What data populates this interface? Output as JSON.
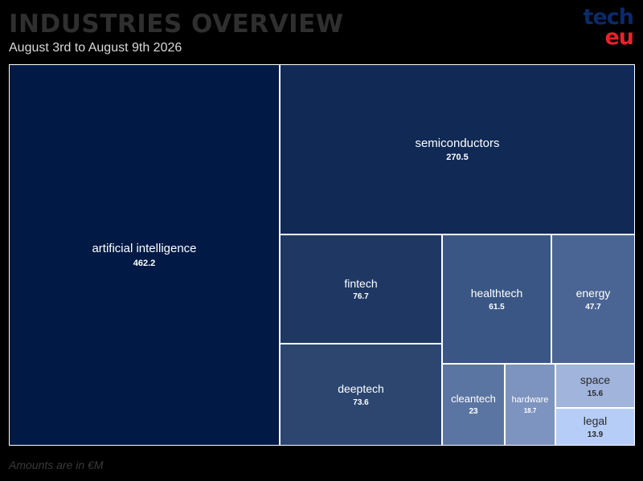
{
  "header": {
    "title": "INDUSTRIES OVERVIEW",
    "subtitle": "August 3rd to August 9th 2026"
  },
  "logo": {
    "line1": "tech",
    "line2": "eu"
  },
  "footnote": "Amounts are in €M",
  "chart_data": {
    "type": "treemap",
    "title": "INDUSTRIES OVERVIEW",
    "subtitle": "August 3rd to August 9th 2026",
    "unit": "€M",
    "items": [
      {
        "name": "artificial intelligence",
        "value": 462.2,
        "label": "462.2",
        "color": "#001a45"
      },
      {
        "name": "semiconductors",
        "value": 270.5,
        "label": "270.5",
        "color": "#102a55"
      },
      {
        "name": "fintech",
        "value": 76.7,
        "label": "76.7",
        "color": "#1f3863"
      },
      {
        "name": "deeptech",
        "value": 73.6,
        "label": "73.6",
        "color": "#2c4670"
      },
      {
        "name": "healthtech",
        "value": 61.5,
        "label": "61.5",
        "color": "#3a5684"
      },
      {
        "name": "energy",
        "value": 47.7,
        "label": "47.7",
        "color": "#4a6593"
      },
      {
        "name": "cleantech",
        "value": 23,
        "label": "23",
        "color": "#5b75a3"
      },
      {
        "name": "hardware",
        "value": 18.7,
        "label": "18.7",
        "color": "#7d93c0"
      },
      {
        "name": "space",
        "value": 15.6,
        "label": "15.6",
        "color": "#a0b4dc"
      },
      {
        "name": "legal",
        "value": 13.9,
        "label": "13.9",
        "color": "#b6cdf7"
      }
    ]
  }
}
